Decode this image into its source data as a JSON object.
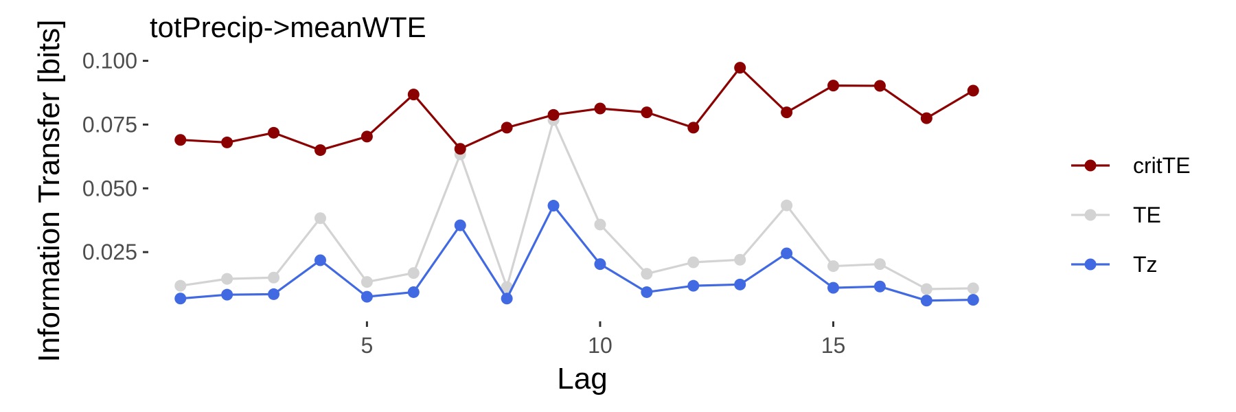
{
  "chart_data": {
    "type": "line",
    "title": "totPrecip->meanWTE",
    "xlabel": "Lag",
    "ylabel": "Information Transfer [bits]",
    "x": [
      1,
      2,
      3,
      4,
      5,
      6,
      7,
      8,
      9,
      10,
      11,
      12,
      13,
      14,
      15,
      16,
      17,
      18
    ],
    "x_ticks": [
      5,
      10,
      15
    ],
    "x_tick_labels": [
      "5",
      "10",
      "15"
    ],
    "xlim": [
      0.4,
      18.6
    ],
    "y_ticks": [
      0.025,
      0.05,
      0.075,
      0.1
    ],
    "y_tick_labels": [
      "0.025",
      "0.050",
      "0.075",
      "0.100"
    ],
    "ylim": [
      0.0,
      0.105
    ],
    "grid": false,
    "legend_position": "right",
    "series": [
      {
        "name": "TE",
        "color": "#d3d3d3",
        "values": [
          0.0118,
          0.0145,
          0.015,
          0.0383,
          0.0133,
          0.0168,
          0.0633,
          0.0113,
          0.0768,
          0.0358,
          0.0165,
          0.021,
          0.022,
          0.0433,
          0.0195,
          0.0203,
          0.0105,
          0.0108
        ]
      },
      {
        "name": "Tz",
        "color": "#4169e1",
        "values": [
          0.0068,
          0.0083,
          0.0085,
          0.0218,
          0.0075,
          0.0093,
          0.0355,
          0.0068,
          0.0432,
          0.0203,
          0.0093,
          0.0118,
          0.0123,
          0.0245,
          0.011,
          0.0115,
          0.006,
          0.0063
        ]
      },
      {
        "name": "critTE",
        "color": "#8b0000",
        "values": [
          0.069,
          0.068,
          0.0718,
          0.065,
          0.0703,
          0.0868,
          0.0655,
          0.0738,
          0.0788,
          0.0813,
          0.0798,
          0.0738,
          0.0973,
          0.0798,
          0.0903,
          0.0902,
          0.0775,
          0.0883
        ]
      }
    ],
    "legend": [
      {
        "label": "critTE",
        "color": "#8b0000"
      },
      {
        "label": "TE",
        "color": "#d3d3d3"
      },
      {
        "label": "Tz",
        "color": "#4169e1"
      }
    ]
  }
}
